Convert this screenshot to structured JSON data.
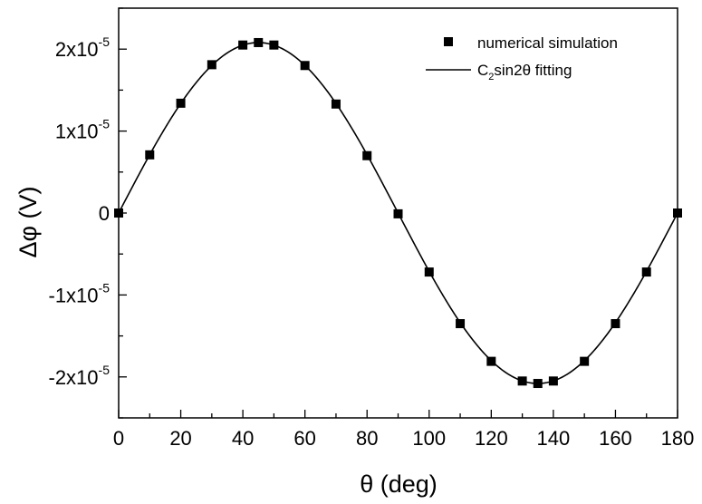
{
  "chart_data": {
    "type": "scatter",
    "xlabel": "θ (deg)",
    "ylabel": "Δφ (V)",
    "xlim": [
      0,
      180
    ],
    "ylim": [
      -2.5e-05,
      2.5e-05
    ],
    "grid": false,
    "legend_position": "top-right",
    "x_ticks": [
      0,
      20,
      40,
      60,
      80,
      100,
      120,
      140,
      160,
      180
    ],
    "x_tick_labels": [
      "0",
      "20",
      "40",
      "60",
      "80",
      "100",
      "120",
      "140",
      "160",
      "180"
    ],
    "y_ticks": [
      -2e-05,
      -1e-05,
      0,
      1e-05,
      2e-05
    ],
    "y_tick_labels": [
      {
        "mantissa": "-2x10",
        "exponent": "-5"
      },
      {
        "mantissa": "-1x10",
        "exponent": "-5"
      },
      {
        "mantissa": "0",
        "exponent": ""
      },
      {
        "mantissa": "1x10",
        "exponent": "-5"
      },
      {
        "mantissa": "2x10",
        "exponent": "-5"
      }
    ],
    "series": [
      {
        "name": "numerical simulation",
        "style": "square-markers",
        "color": "#000000",
        "x": [
          0,
          10,
          20,
          30,
          40,
          45,
          50,
          60,
          70,
          80,
          90,
          100,
          110,
          120,
          130,
          135,
          140,
          150,
          160,
          170,
          180
        ],
        "y": [
          0,
          7.1e-06,
          1.34e-05,
          1.81e-05,
          2.05e-05,
          2.08e-05,
          2.05e-05,
          1.8e-05,
          1.33e-05,
          7e-06,
          -1e-07,
          -7.2e-06,
          -1.35e-05,
          -1.81e-05,
          -2.05e-05,
          -2.08e-05,
          -2.05e-05,
          -1.81e-05,
          -1.35e-05,
          -7.2e-06,
          0
        ]
      },
      {
        "name_parts": {
          "c": "C",
          "sub": "2",
          "rest": "sin2θ fitting"
        },
        "style": "line",
        "color": "#000000",
        "function": "C2*sin(2θ)",
        "amplitude": 2.08e-05
      }
    ]
  }
}
